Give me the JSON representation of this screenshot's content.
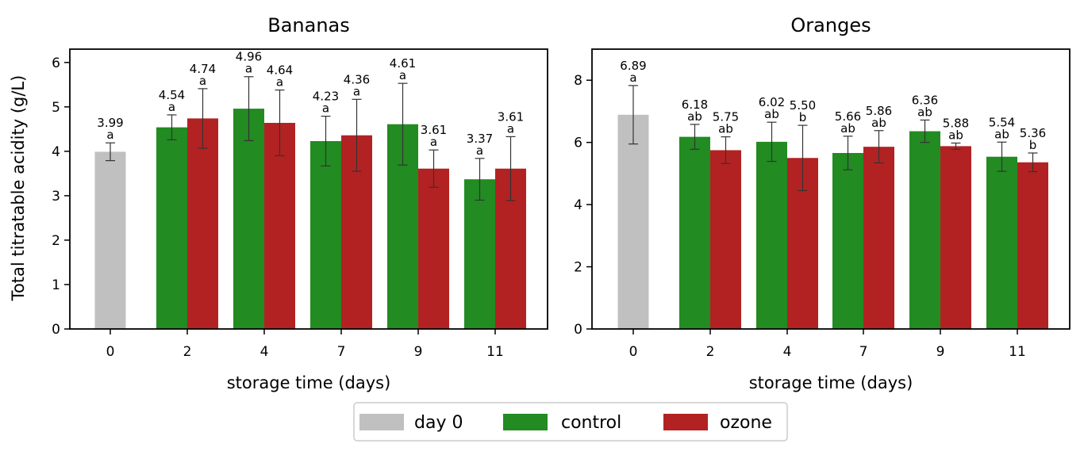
{
  "colors": {
    "day0": "#c0c0c0",
    "control": "#228b22",
    "ozone": "#b22222",
    "error": "#333333"
  },
  "legend": {
    "items": [
      {
        "label": "day 0",
        "color": "#c0c0c0"
      },
      {
        "label": "control",
        "color": "#228b22"
      },
      {
        "label": "ozone",
        "color": "#b22222"
      }
    ]
  },
  "chart_data": [
    {
      "type": "bar",
      "title": "Bananas",
      "xlabel": "storage time (days)",
      "ylabel": "Total titratable acidity (g/L)",
      "ylim": [
        0,
        6.3
      ],
      "yticks": [
        0,
        1,
        2,
        3,
        4,
        5,
        6
      ],
      "categories": [
        "0",
        "2",
        "4",
        "7",
        "9",
        "11"
      ],
      "series": [
        {
          "name": "day 0",
          "values": [
            3.99,
            null,
            null,
            null,
            null,
            null
          ],
          "errors": [
            0.2,
            null,
            null,
            null,
            null,
            null
          ],
          "value_labels": [
            "3.99",
            null,
            null,
            null,
            null,
            null
          ],
          "letters": [
            "a",
            null,
            null,
            null,
            null,
            null
          ]
        },
        {
          "name": "control",
          "values": [
            null,
            4.54,
            4.96,
            4.23,
            4.61,
            3.37
          ],
          "errors": [
            null,
            0.28,
            0.72,
            0.56,
            0.92,
            0.47
          ],
          "value_labels": [
            null,
            "4.54",
            "4.96",
            "4.23",
            "4.61",
            "3.37"
          ],
          "letters": [
            null,
            "a",
            "a",
            "a",
            "a",
            "a"
          ]
        },
        {
          "name": "ozone",
          "values": [
            null,
            4.74,
            4.64,
            4.36,
            3.61,
            3.61
          ],
          "errors": [
            null,
            0.67,
            0.74,
            0.81,
            0.42,
            0.72
          ],
          "value_labels": [
            null,
            "4.74",
            "4.64",
            "4.36",
            "3.61",
            "3.61"
          ],
          "letters": [
            null,
            "a",
            "a",
            "a",
            "a",
            "a"
          ]
        }
      ]
    },
    {
      "type": "bar",
      "title": "Oranges",
      "xlabel": "storage time (days)",
      "ylabel": "",
      "ylim": [
        0,
        9
      ],
      "yticks": [
        0,
        2,
        4,
        6,
        8
      ],
      "categories": [
        "0",
        "2",
        "4",
        "7",
        "9",
        "11"
      ],
      "series": [
        {
          "name": "day 0",
          "values": [
            6.89,
            null,
            null,
            null,
            null,
            null
          ],
          "errors": [
            0.94,
            null,
            null,
            null,
            null,
            null
          ],
          "value_labels": [
            "6.89",
            null,
            null,
            null,
            null,
            null
          ],
          "letters": [
            "a",
            null,
            null,
            null,
            null,
            null
          ]
        },
        {
          "name": "control",
          "values": [
            null,
            6.18,
            6.02,
            5.66,
            6.36,
            5.54
          ],
          "errors": [
            null,
            0.4,
            0.63,
            0.54,
            0.36,
            0.47
          ],
          "value_labels": [
            null,
            "6.18",
            "6.02",
            "5.66",
            "6.36",
            "5.54"
          ],
          "letters": [
            null,
            "ab",
            "ab",
            "ab",
            "ab",
            "ab"
          ]
        },
        {
          "name": "ozone",
          "values": [
            null,
            5.75,
            5.5,
            5.86,
            5.88,
            5.36
          ],
          "errors": [
            null,
            0.43,
            1.05,
            0.52,
            0.1,
            0.3
          ],
          "value_labels": [
            null,
            "5.75",
            "5.50",
            "5.86",
            "5.88",
            "5.36"
          ],
          "letters": [
            null,
            "ab",
            "b",
            "ab",
            "ab",
            "b"
          ]
        }
      ]
    }
  ]
}
